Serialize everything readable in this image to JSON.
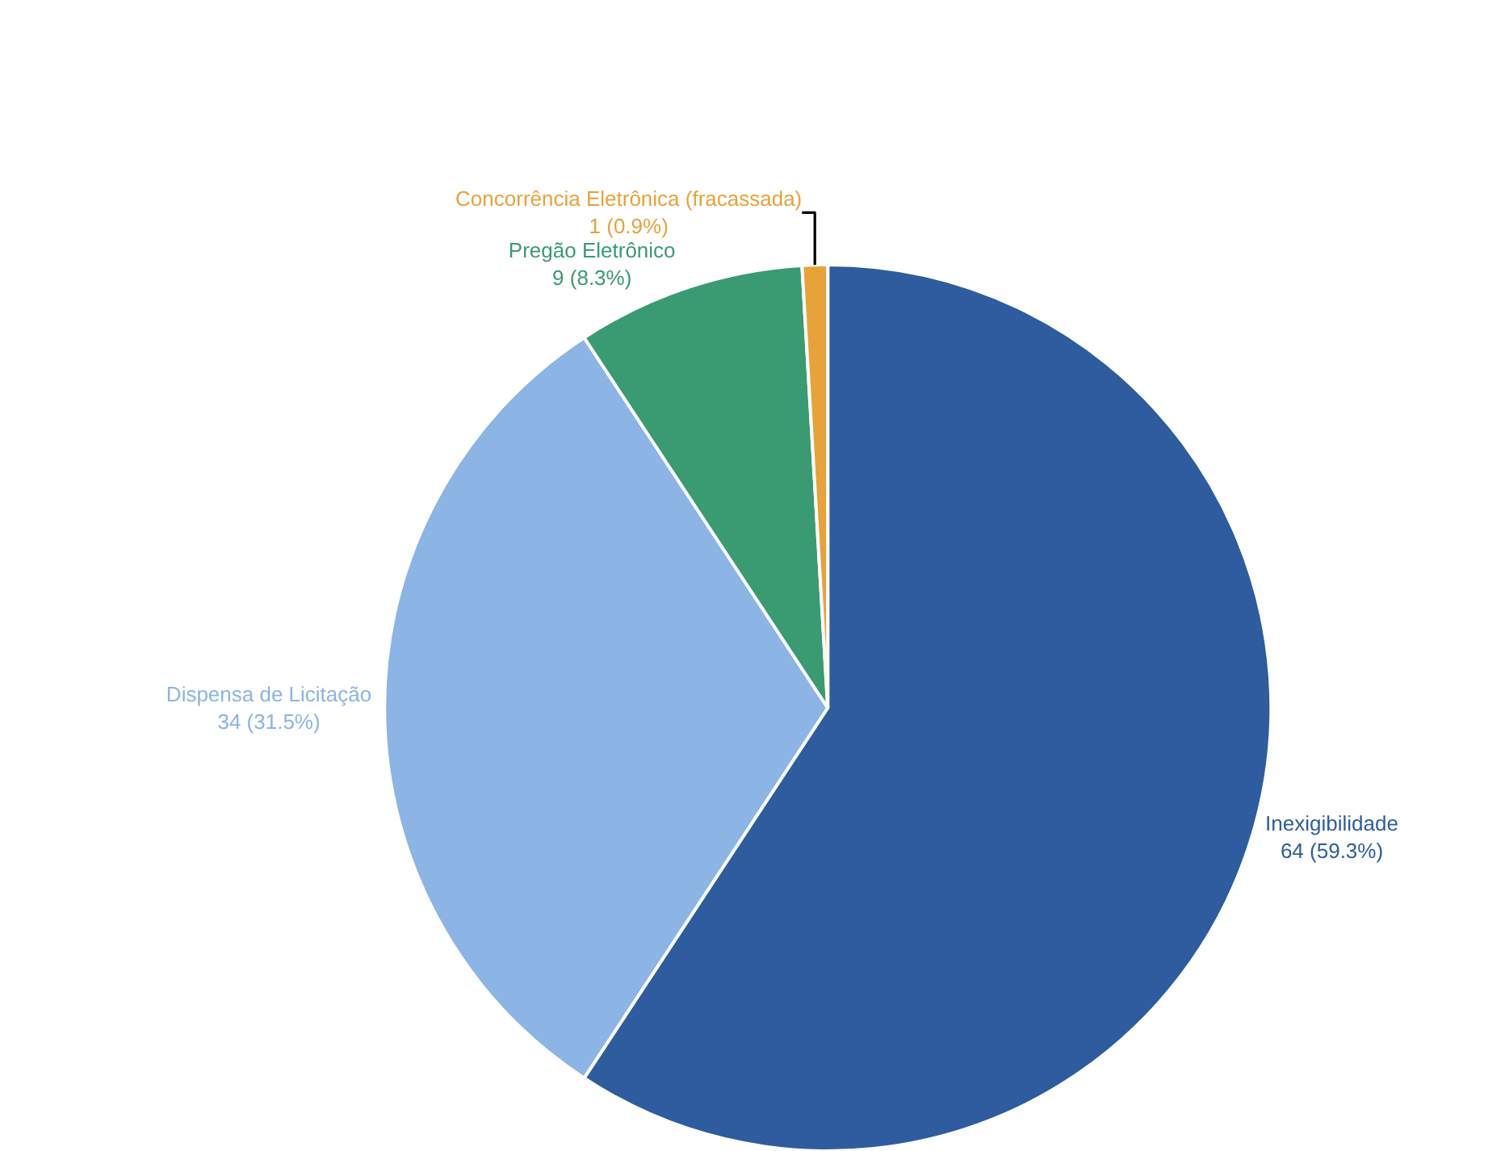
{
  "chart_data": {
    "type": "pie",
    "categories": [
      "Inexigibilidade",
      "Dispensa de Licitação",
      "Pregão Eletrônico",
      "Concorrência Eletrônica (fracassada)"
    ],
    "values": [
      64,
      34,
      9,
      1
    ],
    "value_labels": [
      "64 (59.3%)",
      "34 (31.5%)",
      "9 (8.3%)",
      "1 (0.9%)"
    ],
    "colors": [
      "#2e5c9e",
      "#8cb4e4",
      "#3a9a72",
      "#e8a23a"
    ],
    "legend": false
  }
}
